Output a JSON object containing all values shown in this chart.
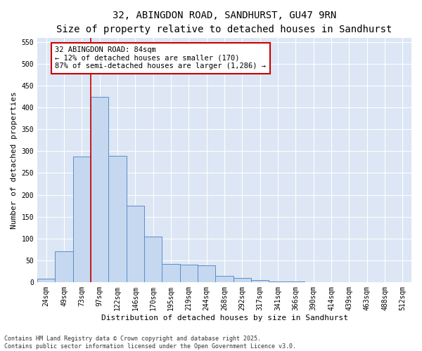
{
  "title1": "32, ABINGDON ROAD, SANDHURST, GU47 9RN",
  "title2": "Size of property relative to detached houses in Sandhurst",
  "xlabel": "Distribution of detached houses by size in Sandhurst",
  "ylabel": "Number of detached properties",
  "bar_labels": [
    "24sqm",
    "49sqm",
    "73sqm",
    "97sqm",
    "122sqm",
    "146sqm",
    "170sqm",
    "195sqm",
    "219sqm",
    "244sqm",
    "268sqm",
    "292sqm",
    "317sqm",
    "341sqm",
    "366sqm",
    "390sqm",
    "414sqm",
    "439sqm",
    "463sqm",
    "488sqm",
    "512sqm"
  ],
  "bar_values": [
    7,
    70,
    287,
    425,
    290,
    175,
    105,
    42,
    40,
    38,
    15,
    9,
    5,
    2,
    1,
    0,
    0,
    0,
    0,
    0,
    0
  ],
  "bar_color": "#c5d8f0",
  "bar_edge_color": "#5b8dc8",
  "vline_color": "#cc0000",
  "annotation_text": "32 ABINGDON ROAD: 84sqm\n← 12% of detached houses are smaller (170)\n87% of semi-detached houses are larger (1,286) →",
  "annotation_box_color": "#cc0000",
  "background_color": "#dce6f4",
  "ylim": [
    0,
    560
  ],
  "yticks": [
    0,
    50,
    100,
    150,
    200,
    250,
    300,
    350,
    400,
    450,
    500,
    550
  ],
  "footer1": "Contains HM Land Registry data © Crown copyright and database right 2025.",
  "footer2": "Contains public sector information licensed under the Open Government Licence v3.0.",
  "title1_fontsize": 10,
  "title2_fontsize": 9,
  "xlabel_fontsize": 8,
  "ylabel_fontsize": 8,
  "tick_fontsize": 7,
  "annotation_fontsize": 7.5,
  "footer_fontsize": 6
}
